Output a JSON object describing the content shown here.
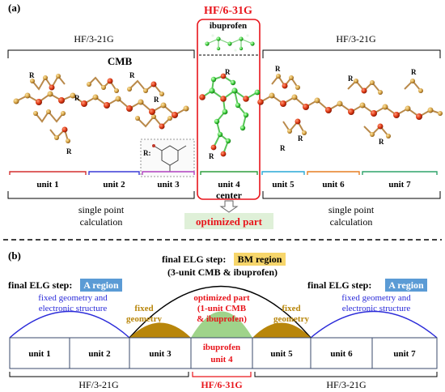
{
  "panel_a": {
    "label": "(a)",
    "center_basis": "HF/6-31G",
    "ibuprofen_label": "ibuprofen",
    "left_basis": "HF/3-21G",
    "right_basis": "HF/3-21G",
    "cmb_label": "CMB",
    "r_label": "R",
    "r_inset_label": "R:",
    "units": [
      "unit 1",
      "unit 2",
      "unit 3",
      "unit 4",
      "unit 5",
      "unit 6",
      "unit 7"
    ],
    "center_label": "center",
    "left_calc": [
      "single point",
      "calculation"
    ],
    "right_calc": [
      "single point",
      "calculation"
    ],
    "optimized_label": "optimized part"
  },
  "panel_b": {
    "label": "(b)",
    "bm_step_prefix": "final ELG step:",
    "bm_region": "BM region",
    "bm_sub": "(3-unit CMB & ibuprofen)",
    "left_step_prefix": "final ELG step:",
    "left_region": "A region",
    "right_step_prefix": "final ELG step:",
    "right_region": "A region",
    "fixed_desc_left": [
      "fixed geometry and",
      "electronic structure"
    ],
    "fixed_desc_right": [
      "fixed geometry and",
      "electronic structure"
    ],
    "fixed_geom_left": [
      "fixed",
      "geometry"
    ],
    "fixed_geom_right": [
      "fixed",
      "geometry"
    ],
    "optimized_part": [
      "optimized part",
      "(1-unit CMB",
      "& ibuprofen)"
    ],
    "units": [
      "unit 1",
      "unit 2",
      "unit 3",
      "ibuprofen",
      "unit 4",
      "unit 5",
      "unit 6",
      "unit 7"
    ],
    "left_basis": "HF/3-21G",
    "center_basis": "HF/6-31G",
    "right_basis": "HF/3-21G"
  },
  "colors": {
    "red": "#e8141b",
    "blue": "#2b2bd9",
    "gold": "#b8860b",
    "green_fill": "#9fd38a",
    "bm_badge": "#f7d66b",
    "a_badge": "#5b9bd5",
    "opt_bg": "#dff0d8",
    "unit1": "#d32f2f",
    "unit2": "#3a3ad6",
    "unit3": "#b040c0",
    "unit4": "#2e9e3e",
    "unit5": "#29a9d6",
    "unit6": "#e67e22",
    "unit7": "#2ea36a"
  }
}
